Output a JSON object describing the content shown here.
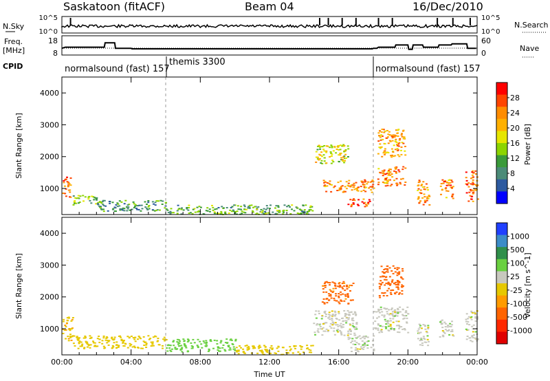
{
  "header": {
    "station": "Saskatoon (fitACF)",
    "beam": "Beam 04",
    "date": "16/Dec/2010"
  },
  "chart_data": [
    {
      "type": "line",
      "panel": "noise",
      "left_label": "N.Sky",
      "right_label": "N.Search",
      "left_ticks": [
        "10^5",
        "10^0"
      ],
      "right_ticks": [
        "10^5",
        "10^0"
      ]
    },
    {
      "type": "line",
      "panel": "frequency",
      "left_label_lines": [
        "Freq.",
        "[MHz]"
      ],
      "right_label": "Nave",
      "left_ticks": [
        "18",
        "8"
      ],
      "right_ticks": [
        "60",
        "0"
      ],
      "freq_steps": [
        [
          0.0,
          11
        ],
        [
          0.2,
          12
        ],
        [
          2.45,
          12
        ],
        [
          2.5,
          16
        ],
        [
          3.05,
          16
        ],
        [
          3.1,
          11
        ],
        [
          4.0,
          11
        ],
        [
          4.05,
          10.5
        ],
        [
          17.95,
          10.5
        ],
        [
          18.0,
          11
        ],
        [
          18.2,
          11
        ],
        [
          18.3,
          12
        ],
        [
          19.25,
          12
        ],
        [
          19.3,
          14
        ],
        [
          20.0,
          14
        ],
        [
          20.05,
          10
        ],
        [
          20.25,
          10
        ],
        [
          20.3,
          14
        ],
        [
          20.85,
          14
        ],
        [
          20.9,
          12
        ],
        [
          21.75,
          12
        ],
        [
          21.8,
          14
        ],
        [
          22.5,
          14
        ],
        [
          22.55,
          15
        ],
        [
          23.4,
          15
        ],
        [
          23.45,
          11
        ],
        [
          23.95,
          11
        ]
      ]
    },
    {
      "type": "table",
      "panel": "cpid",
      "label": "CPID",
      "segments": [
        {
          "start": 0.0,
          "text": "normalsound (fast) 157"
        },
        {
          "start": 6.0,
          "text": "themis 3300"
        },
        {
          "start": 18.0,
          "text": "normalsound (fast) 157"
        }
      ]
    },
    {
      "type": "heatmap",
      "panel": "power",
      "ylabel": "Slant Range [km]",
      "y_ticks": [
        1000,
        2000,
        3000,
        4000
      ],
      "ylim": [
        180,
        4500
      ],
      "colorbar_label": "Power [dB]",
      "colorbar_ticks": [
        "28",
        "24",
        "20",
        "16",
        "12",
        "8",
        "4"
      ],
      "colorbar_colors": [
        "#ff0000",
        "#ff4500",
        "#ff8c00",
        "#ffb000",
        "#e6e600",
        "#8cd400",
        "#3a9a3a",
        "#4b8b78",
        "#2d5aa0",
        "#0000ff"
      ],
      "x_hours": [
        0,
        4,
        8,
        12,
        16,
        20,
        24
      ],
      "regions": [
        {
          "x": [
            0.0,
            0.5
          ],
          "y": [
            700,
            1400
          ],
          "power": 26
        },
        {
          "x": [
            0.5,
            2.0
          ],
          "y": [
            500,
            800
          ],
          "power": 14
        },
        {
          "x": [
            2.0,
            6.0
          ],
          "y": [
            300,
            650
          ],
          "power": 10
        },
        {
          "x": [
            6.0,
            14.5
          ],
          "y": [
            200,
            500
          ],
          "power": 12
        },
        {
          "x": [
            14.5,
            16.5
          ],
          "y": [
            1800,
            2400
          ],
          "power": 18
        },
        {
          "x": [
            15.0,
            18.0
          ],
          "y": [
            900,
            1300
          ],
          "power": 24
        },
        {
          "x": [
            16.5,
            17.8
          ],
          "y": [
            450,
            700
          ],
          "power": 26
        },
        {
          "x": [
            18.2,
            19.8
          ],
          "y": [
            2000,
            2900
          ],
          "power": 22
        },
        {
          "x": [
            18.2,
            19.8
          ],
          "y": [
            1100,
            1700
          ],
          "power": 24
        },
        {
          "x": [
            20.5,
            21.2
          ],
          "y": [
            500,
            1300
          ],
          "power": 22
        },
        {
          "x": [
            21.8,
            22.6
          ],
          "y": [
            700,
            1300
          ],
          "power": 24
        },
        {
          "x": [
            23.3,
            24.0
          ],
          "y": [
            600,
            1600
          ],
          "power": 26
        }
      ]
    },
    {
      "type": "heatmap",
      "panel": "velocity",
      "ylabel": "Slant Range [km]",
      "y_ticks": [
        1000,
        2000,
        3000,
        4000
      ],
      "ylim": [
        180,
        4500
      ],
      "colorbar_label": "Velocity [m s^-1]",
      "colorbar_ticks": [
        "1000",
        "500",
        "100",
        "25",
        "-25",
        "-100",
        "-500",
        "-1000"
      ],
      "colorbar_colors": [
        "#2040ff",
        "#3c8cc8",
        "#2f8f4a",
        "#6ad040",
        "#c8c8be",
        "#e6c800",
        "#ff9b00",
        "#ff6400",
        "#ff2800",
        "#e00000"
      ],
      "xlabel": "Time UT",
      "x_tick_labels": [
        "00:00",
        "04:00",
        "08:00",
        "12:00",
        "16:00",
        "20:00",
        "00:00"
      ],
      "x_hours": [
        0,
        4,
        8,
        12,
        16,
        20,
        24
      ],
      "regions": [
        {
          "x": [
            0.0,
            0.6
          ],
          "y": [
            600,
            1400
          ],
          "velocity": -80
        },
        {
          "x": [
            0.6,
            6.0
          ],
          "y": [
            400,
            800
          ],
          "velocity": -60
        },
        {
          "x": [
            6.0,
            10.0
          ],
          "y": [
            300,
            700
          ],
          "velocity": 60
        },
        {
          "x": [
            10.0,
            14.5
          ],
          "y": [
            200,
            500
          ],
          "velocity": -70
        },
        {
          "x": [
            14.5,
            17.0
          ],
          "y": [
            800,
            1600
          ],
          "velocity": 0
        },
        {
          "x": [
            15.0,
            16.8
          ],
          "y": [
            1800,
            2500
          ],
          "velocity": -400
        },
        {
          "x": [
            16.5,
            18.0
          ],
          "y": [
            300,
            800
          ],
          "velocity": 0
        },
        {
          "x": [
            18.0,
            20.0
          ],
          "y": [
            900,
            1700
          ],
          "velocity": 0
        },
        {
          "x": [
            18.3,
            19.7
          ],
          "y": [
            2000,
            3000
          ],
          "velocity": -450
        },
        {
          "x": [
            20.5,
            21.2
          ],
          "y": [
            500,
            1200
          ],
          "velocity": 0
        },
        {
          "x": [
            21.8,
            22.6
          ],
          "y": [
            700,
            1300
          ],
          "velocity": 0
        },
        {
          "x": [
            23.3,
            24.0
          ],
          "y": [
            600,
            1600
          ],
          "velocity": 0
        }
      ]
    }
  ]
}
